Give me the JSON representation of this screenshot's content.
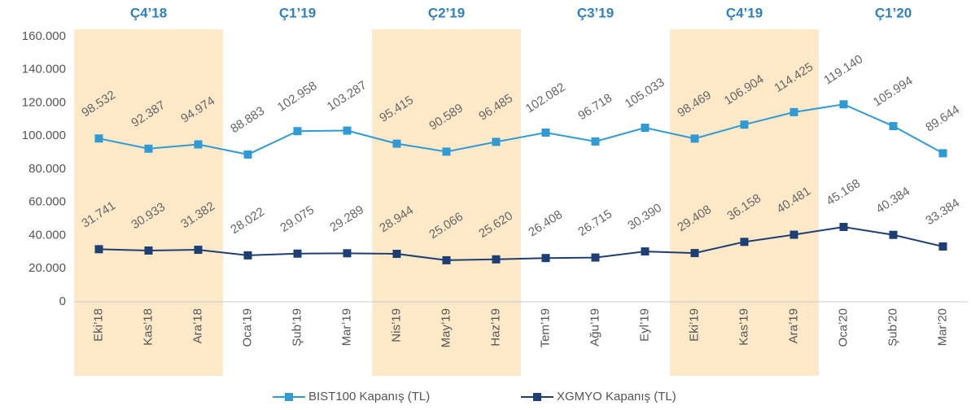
{
  "chart_data": {
    "type": "line",
    "quarters": [
      "Ç4’18",
      "Ç1’19",
      "Ç2’19",
      "Ç3’19",
      "Ç4’19",
      "Ç1’20"
    ],
    "band_color": "#fde8c8",
    "categories": [
      "Eki’18",
      "Kas’18",
      "Ara’18",
      "Oca’19",
      "Şub’19",
      "Mar’19",
      "Nis’19",
      "May’19",
      "Haz’19",
      "Tem’19",
      "Ağu’19",
      "Eyl’19",
      "Eki’19",
      "Kas’19",
      "Ara’19",
      "Oca’20",
      "Şub’20",
      "Mar’20"
    ],
    "series": [
      {
        "name": "BIST100 Kapanış (TL)",
        "color": "#2f9ad3",
        "values": [
          98532,
          92387,
          94974,
          88883,
          102958,
          103287,
          95415,
          90589,
          96485,
          102082,
          96718,
          105033,
          98469,
          106904,
          114425,
          119140,
          105994,
          89644
        ],
        "value_labels": [
          "98.532",
          "92.387",
          "94.974",
          "88.883",
          "102.958",
          "103.287",
          "95.415",
          "90.589",
          "96.485",
          "102.082",
          "96.718",
          "105.033",
          "98.469",
          "106.904",
          "114.425",
          "119.140",
          "105.994",
          "89.644"
        ]
      },
      {
        "name": "XGMYO Kapanış (TL)",
        "color": "#1d3f73",
        "values": [
          31741,
          30933,
          31382,
          28022,
          29075,
          29289,
          28944,
          25066,
          25620,
          26408,
          26715,
          30390,
          29408,
          36158,
          40481,
          45168,
          40384,
          33384
        ],
        "value_labels": [
          "31.741",
          "30.933",
          "31.382",
          "28.022",
          "29.075",
          "29.289",
          "28.944",
          "25.066",
          "25.620",
          "26.408",
          "26.715",
          "30.390",
          "29.408",
          "36.158",
          "40.481",
          "45.168",
          "40.384",
          "33.384"
        ]
      }
    ],
    "ylim": [
      0,
      160000
    ],
    "yticks": [
      0,
      {
        "value": 20000,
        "label": "20.000"
      },
      {
        "value": 40000,
        "label": "40.000"
      },
      {
        "value": 60000,
        "label": "60.000"
      },
      {
        "value": 80000,
        "label": "80.000"
      },
      {
        "value": 100000,
        "label": "100.000"
      },
      {
        "value": 120000,
        "label": "120.000"
      },
      {
        "value": 140000,
        "label": "140.000"
      },
      {
        "value": 160000,
        "label": "160.000"
      }
    ],
    "grid": false
  }
}
